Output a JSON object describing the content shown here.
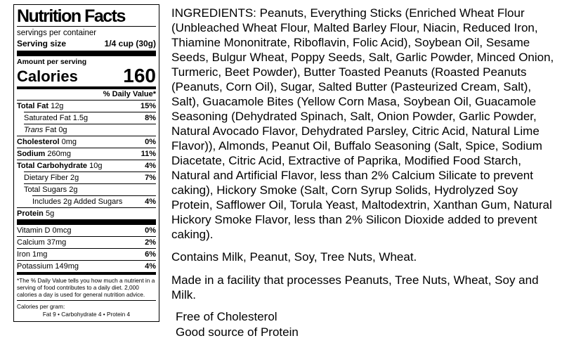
{
  "colors": {
    "text": "#000000",
    "background": "#ffffff",
    "border": "#000000"
  },
  "nutrition_label": {
    "title": "Nutrition Facts",
    "servings_per_container": "servings per container",
    "serving_size": {
      "label": "Serving size",
      "value": "1/4 cup (30g)"
    },
    "amount_per_serving": "Amount per serving",
    "calories": {
      "label": "Calories",
      "value": "160"
    },
    "daily_value_header": "% Daily Value*",
    "nutrients": [
      {
        "name": "Total Fat",
        "amount": " 12g",
        "dv": "15%"
      },
      {
        "name": "Saturated Fat",
        "amount": " 1.5g",
        "dv": "8%"
      },
      {
        "name": "Trans",
        "amount": " Fat 0g",
        "dv": ""
      },
      {
        "name": "Cholesterol",
        "amount": " 0mg",
        "dv": "0%"
      },
      {
        "name": "Sodium",
        "amount": " 260mg",
        "dv": "11%"
      },
      {
        "name": "Total Carbohydrate",
        "amount": " 10g",
        "dv": "4%"
      },
      {
        "name": "Dietary Fiber",
        "amount": " 2g",
        "dv": "7%"
      },
      {
        "name": "Total Sugars",
        "amount": " 2g",
        "dv": ""
      },
      {
        "name": "Includes 2g Added Sugars",
        "amount": "",
        "dv": "4%"
      },
      {
        "name": "Protein",
        "amount": " 5g",
        "dv": ""
      }
    ],
    "minerals": [
      {
        "name": "Vitamin D 0mcg",
        "dv": "0%"
      },
      {
        "name": "Calcium 37mg",
        "dv": "2%"
      },
      {
        "name": "Iron 1mg",
        "dv": "6%"
      },
      {
        "name": "Potassium 149mg",
        "dv": "4%"
      }
    ],
    "footnote": "*The % Daily Value tells you how much a nutrient in a serving of food contributes to a daily diet. 2,000 calories a day is used for general nutrition advice.",
    "calories_per_gram": {
      "label": "Calories per gram:",
      "values": "Fat 9   •   Carbohydrate 4   •   Protein 4"
    }
  },
  "right_panel": {
    "ingredients": "INGREDIENTS: Peanuts, Everything Sticks (Enriched Wheat Flour (Unbleached Wheat Flour, Malted Barley Flour, Niacin, Reduced Iron, Thiamine Mononitrate, Riboflavin, Folic Acid), Soybean Oil, Sesame Seeds, Bulgur Wheat, Poppy Seeds, Salt, Garlic Powder, Minced Onion, Turmeric, Beet Powder), Butter Toasted Peanuts (Roasted Peanuts (Peanuts, Corn Oil), Sugar, Salted Butter (Pasteurized Cream, Salt), Salt), Guacamole Bites (Yellow Corn Masa, Soybean Oil, Guacamole Seasoning (Dehydrated Spinach, Salt, Onion Powder, Garlic Powder, Natural Avocado Flavor, Dehydrated Parsley, Citric Acid, Natural Lime Flavor)), Almonds, Peanut Oil, Buffalo Seasoning (Salt, Spice, Sodium Diacetate, Citric Acid, Extractive of Paprika, Modified Food Starch, Natural and Artificial Flavor, less than 2% Calcium Silicate to prevent caking), Hickory Smoke (Salt, Corn Syrup Solids, Hydrolyzed Soy Protein, Safflower Oil, Torula Yeast, Maltodextrin, Xanthan Gum, Natural Hickory Smoke Flavor, less than 2% Silicon Dioxide added to prevent caking).",
    "contains": "Contains Milk, Peanut, Soy, Tree Nuts, Wheat.",
    "facility": "Made in a facility that processes Peanuts, Tree Nuts, Wheat, Soy and Milk.",
    "claims": [
      "Free of Cholesterol",
      "Good source of Protein"
    ]
  }
}
